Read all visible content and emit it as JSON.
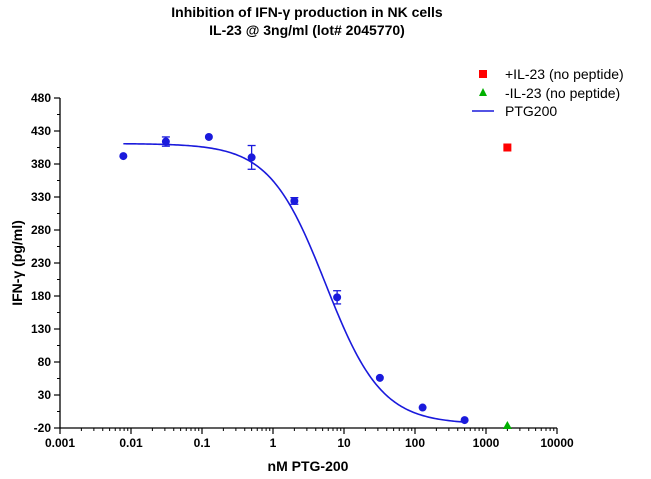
{
  "chart_data": {
    "type": "scatter",
    "title": "Inhibition of IFN-γ production in NK cells",
    "subtitle": "IL-23 @ 3ng/ml (lot# 2045770)",
    "xlabel": "nM PTG-200",
    "ylabel": "IFN-γ (pg/ml)",
    "x_scale": "log",
    "xlim": [
      0.001,
      10000
    ],
    "ylim": [
      -20,
      480
    ],
    "x_ticks": [
      "0.001",
      "0.01",
      "0.1",
      "1",
      "10",
      "100",
      "1000",
      "10000"
    ],
    "y_ticks": [
      "-20",
      "30",
      "80",
      "130",
      "180",
      "230",
      "280",
      "330",
      "380",
      "430",
      "480"
    ],
    "legend_position": "top-right",
    "series": [
      {
        "name": "+IL-23 (no peptide)",
        "color": "#ff0000",
        "marker": "square",
        "points": [
          {
            "x": 2000,
            "y": 405
          }
        ]
      },
      {
        "name": "-IL-23 (no peptide)",
        "color": "#00b000",
        "marker": "triangle",
        "points": [
          {
            "x": 2000,
            "y": -17
          }
        ]
      },
      {
        "name": "PTG200",
        "color": "#1a1adc",
        "marker": "circle",
        "points": [
          {
            "x": 0.0078,
            "y": 392
          },
          {
            "x": 0.031,
            "y": 414,
            "err": 7
          },
          {
            "x": 0.125,
            "y": 421
          },
          {
            "x": 0.5,
            "y": 390,
            "err": 18
          },
          {
            "x": 2,
            "y": 324,
            "err": 5
          },
          {
            "x": 8,
            "y": 178,
            "err": 10
          },
          {
            "x": 32,
            "y": 56
          },
          {
            "x": 128,
            "y": 11
          },
          {
            "x": 500,
            "y": -8
          }
        ],
        "fit": {
          "top": 411,
          "bottom": -14,
          "ec50": 5.5,
          "hill": 1.1,
          "x_range": [
            0.0078,
            500
          ]
        }
      }
    ]
  }
}
